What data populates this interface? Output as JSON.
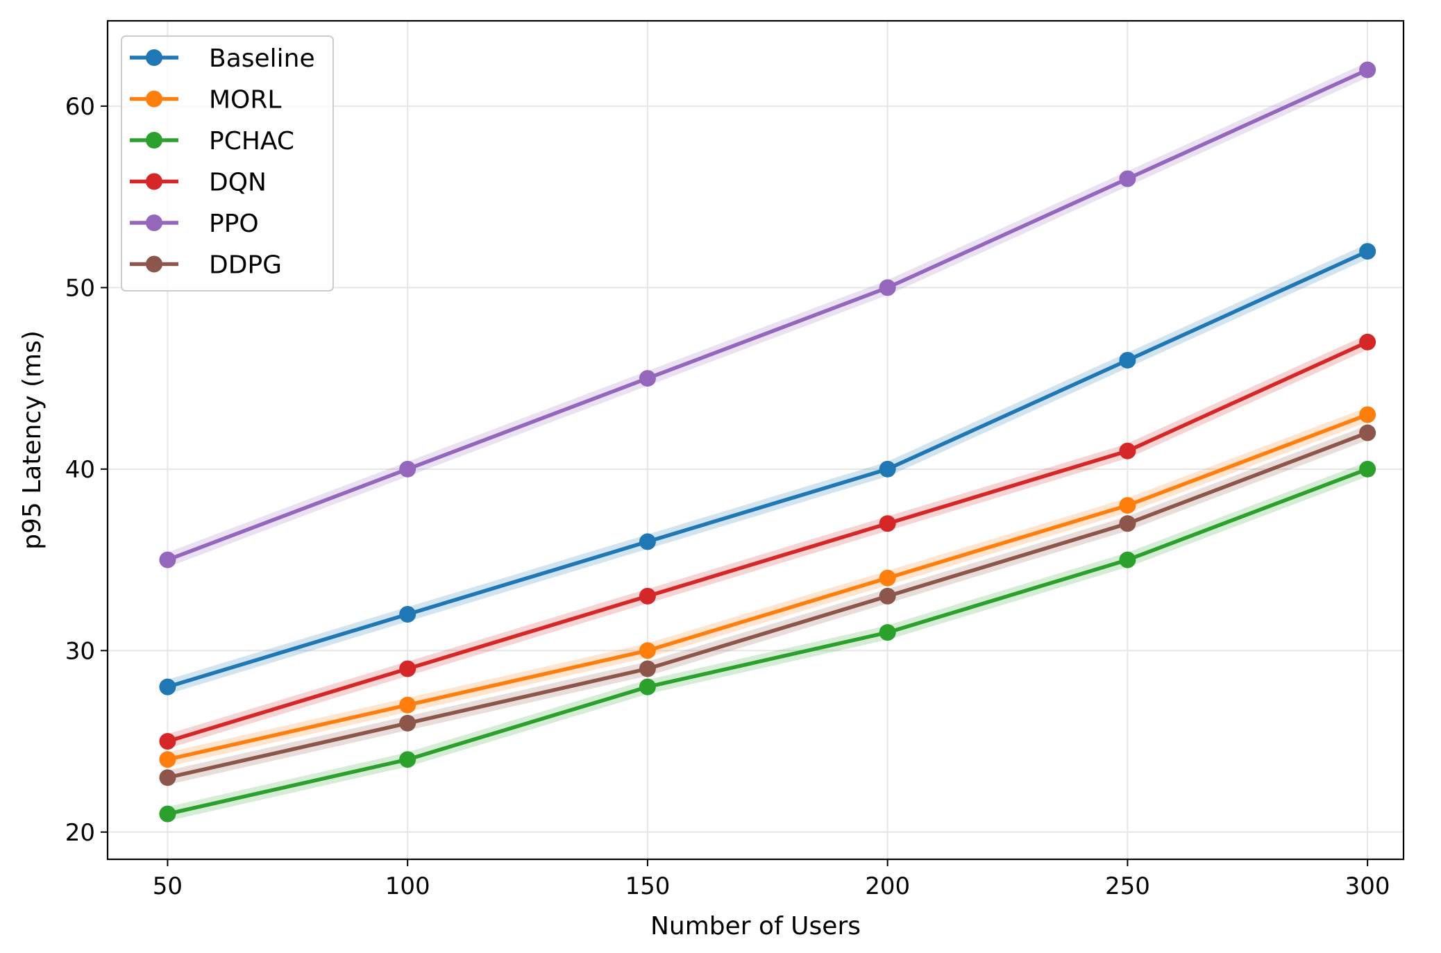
{
  "chart_data": {
    "type": "line",
    "title": "",
    "xlabel": "Number of Users",
    "ylabel": "p95 Latency (ms)",
    "x": [
      50,
      100,
      150,
      200,
      250,
      300
    ],
    "xticks": [
      "50",
      "100",
      "150",
      "200",
      "250",
      "300"
    ],
    "yticks": [
      "20",
      "30",
      "40",
      "50",
      "60"
    ],
    "xlim": [
      37.5,
      307.5
    ],
    "ylim": [
      18.5,
      64.7
    ],
    "grid": true,
    "legend_position": "upper-left",
    "series": [
      {
        "name": "Baseline",
        "color": "#1f77b4",
        "values": [
          28,
          32,
          36,
          40,
          46,
          52
        ]
      },
      {
        "name": "MORL",
        "color": "#ff7f0e",
        "values": [
          24,
          27,
          30,
          34,
          38,
          43
        ]
      },
      {
        "name": "PCHAC",
        "color": "#2ca02c",
        "values": [
          21,
          24,
          28,
          31,
          35,
          40
        ]
      },
      {
        "name": "DQN",
        "color": "#d62728",
        "values": [
          25,
          29,
          33,
          37,
          41,
          47
        ]
      },
      {
        "name": "PPO",
        "color": "#9467bd",
        "values": [
          35,
          40,
          45,
          50,
          56,
          62
        ]
      },
      {
        "name": "DDPG",
        "color": "#8c564b",
        "values": [
          23,
          26,
          29,
          33,
          37,
          42
        ]
      }
    ]
  }
}
